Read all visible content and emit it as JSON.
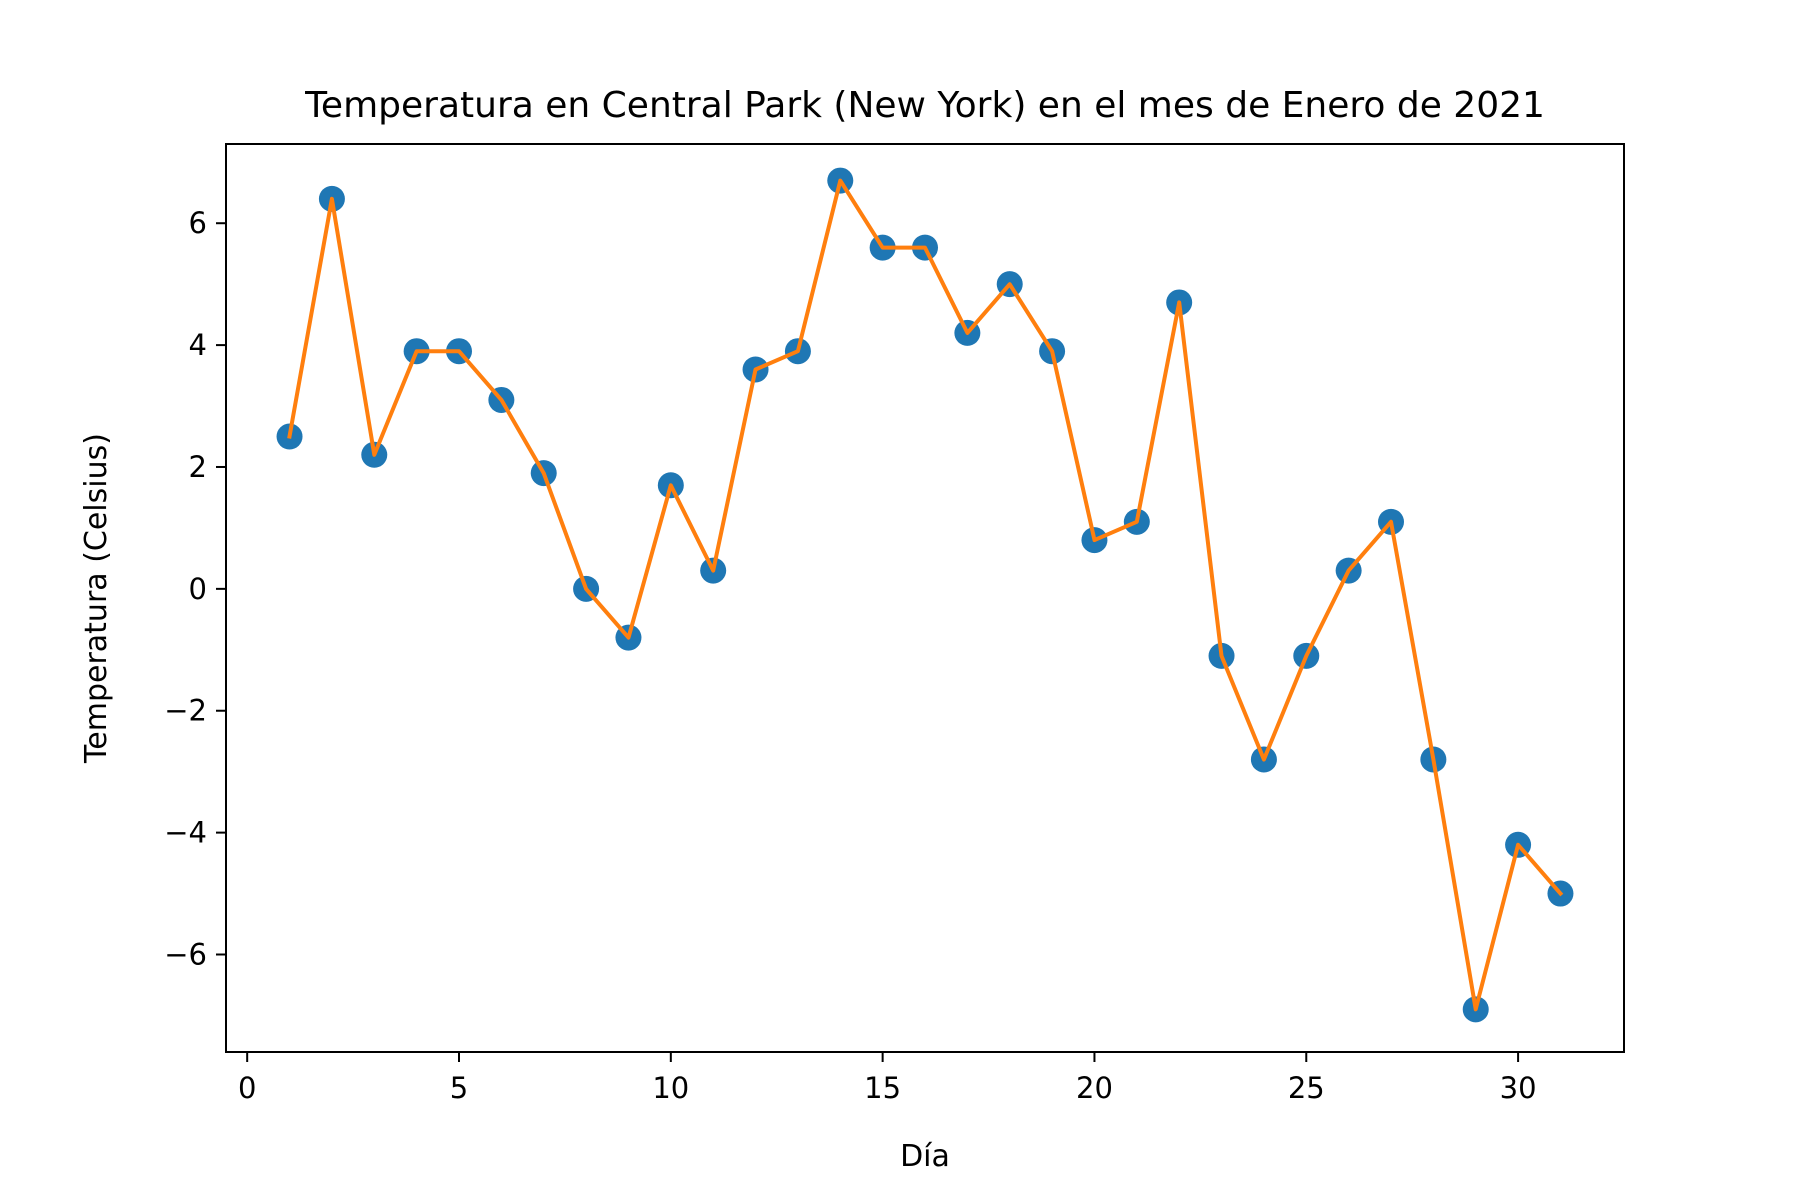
{
  "chart_data": {
    "type": "line",
    "title": "Temperatura en Central Park (New York) en el mes de Enero de 2021",
    "xlabel": "Día",
    "ylabel": "Temperatura (Celsius)",
    "xlim": [
      -0.5,
      32.5
    ],
    "ylim": [
      -7.6,
      7.3
    ],
    "x_ticks": [
      0,
      5,
      10,
      15,
      20,
      25,
      30
    ],
    "y_ticks": [
      -6,
      -4,
      -2,
      0,
      2,
      4,
      6
    ],
    "x_tick_labels": [
      "0",
      "5",
      "10",
      "15",
      "20",
      "25",
      "30"
    ],
    "y_tick_labels": [
      "−6",
      "−4",
      "−2",
      "0",
      "2",
      "4",
      "6"
    ],
    "grid": false,
    "x": [
      1,
      2,
      3,
      4,
      5,
      6,
      7,
      8,
      9,
      10,
      11,
      12,
      13,
      14,
      15,
      16,
      17,
      18,
      19,
      20,
      21,
      22,
      23,
      24,
      25,
      26,
      27,
      28,
      29,
      30,
      31
    ],
    "series": [
      {
        "marker_color": "#1f77b4",
        "line_color": "#ff7f0e",
        "values": [
          2.5,
          6.4,
          2.2,
          3.9,
          3.9,
          3.1,
          1.9,
          0.0,
          -0.8,
          1.7,
          0.3,
          3.6,
          3.9,
          6.7,
          5.6,
          5.6,
          4.2,
          5.0,
          3.9,
          0.8,
          1.1,
          4.7,
          -1.1,
          -2.8,
          -1.1,
          0.3,
          1.1,
          -2.8,
          -6.9,
          -4.2,
          -5.0
        ]
      }
    ]
  }
}
